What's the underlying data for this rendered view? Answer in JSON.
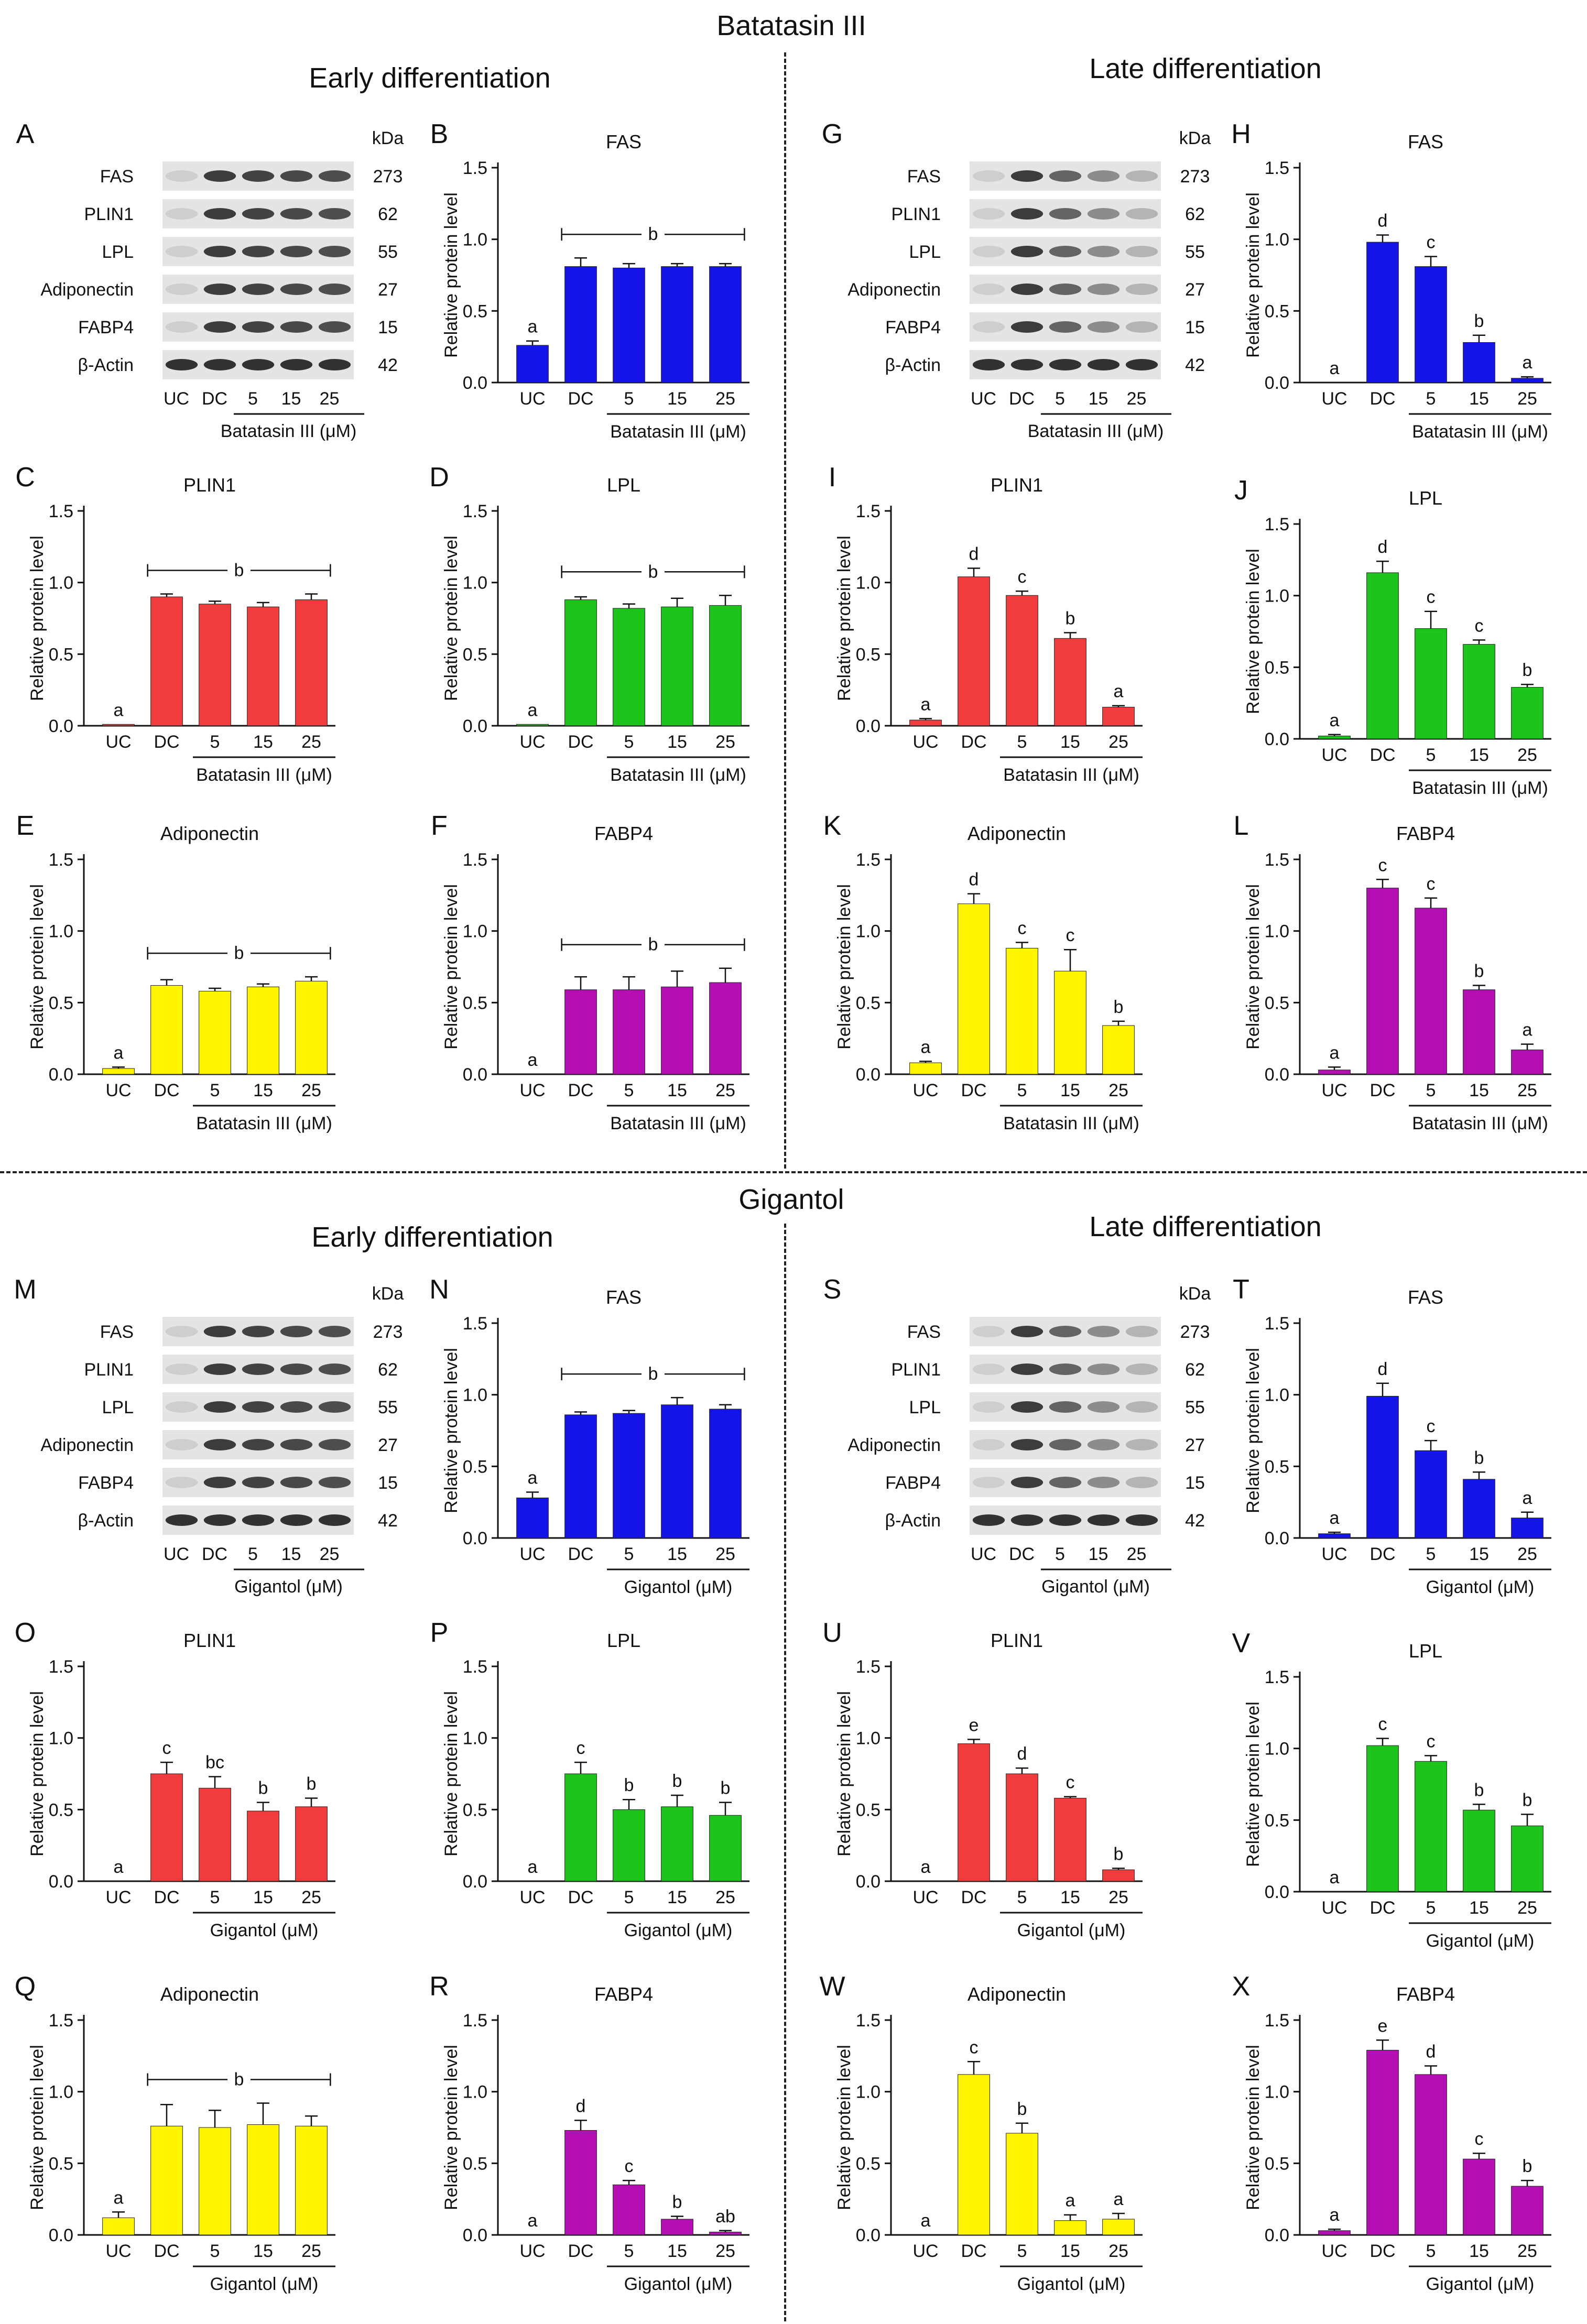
{
  "titles": {
    "top": "Batatasin III",
    "bottom": "Gigantol",
    "early": "Early differentiation",
    "late": "Late differentiation"
  },
  "common": {
    "ylabel": "Relative protein level",
    "kda": "kDa",
    "groups": [
      "UC",
      "DC",
      "5",
      "15",
      "25"
    ]
  },
  "colors": {
    "FAS": "#1414e6",
    "PLIN1": "#f03c3c",
    "LPL": "#1cc41c",
    "Adiponectin": "#fff500",
    "FABP4": "#b30fb3"
  },
  "blots": [
    {
      "panel": "A",
      "treatment": "Batatasin III (μM)",
      "proteins": [
        "FAS",
        "PLIN1",
        "LPL",
        "Adiponectin",
        "FABP4",
        "β-Actin"
      ],
      "kda_values": [
        "273",
        "62",
        "55",
        "27",
        "15",
        "42"
      ]
    },
    {
      "panel": "G",
      "treatment": "Batatasin III (μM)",
      "proteins": [
        "FAS",
        "PLIN1",
        "LPL",
        "Adiponectin",
        "FABP4",
        "β-Actin"
      ],
      "kda_values": [
        "273",
        "62",
        "55",
        "27",
        "15",
        "42"
      ]
    },
    {
      "panel": "M",
      "treatment": "Gigantol (μM)",
      "proteins": [
        "FAS",
        "PLIN1",
        "LPL",
        "Adiponectin",
        "FABP4",
        "β-Actin"
      ],
      "kda_values": [
        "273",
        "62",
        "55",
        "27",
        "15",
        "42"
      ]
    },
    {
      "panel": "S",
      "treatment": "Gigantol (μM)",
      "proteins": [
        "FAS",
        "PLIN1",
        "LPL",
        "Adiponectin",
        "FABP4",
        "β-Actin"
      ],
      "kda_values": [
        "273",
        "62",
        "55",
        "27",
        "15",
        "42"
      ]
    }
  ],
  "chart_data": [
    {
      "panel": "B",
      "type": "bar",
      "title": "FAS",
      "color_key": "FAS",
      "xlabel": "Batatasin III (μM)",
      "ylabel": "Relative protein level",
      "ylim": [
        0,
        1.5
      ],
      "yticks": [
        "0.0",
        "0.5",
        "1.0",
        "1.5"
      ],
      "categories": [
        "UC",
        "DC",
        "5",
        "15",
        "25"
      ],
      "values": [
        0.26,
        0.81,
        0.8,
        0.81,
        0.81
      ],
      "errors": [
        0.03,
        0.06,
        0.03,
        0.02,
        0.02
      ],
      "letters": [
        "a",
        "",
        "",
        "",
        ""
      ],
      "bracket": "b"
    },
    {
      "panel": "C",
      "type": "bar",
      "title": "PLIN1",
      "color_key": "PLIN1",
      "xlabel": "Batatasin III (μM)",
      "ylabel": "Relative protein level",
      "ylim": [
        0,
        1.5
      ],
      "yticks": [
        "0.0",
        "0.5",
        "1.0",
        "1.5"
      ],
      "categories": [
        "UC",
        "DC",
        "5",
        "15",
        "25"
      ],
      "values": [
        0.01,
        0.9,
        0.85,
        0.83,
        0.88
      ],
      "errors": [
        0.0,
        0.02,
        0.02,
        0.03,
        0.04
      ],
      "letters": [
        "a",
        "",
        "",
        "",
        ""
      ],
      "bracket": "b"
    },
    {
      "panel": "D",
      "type": "bar",
      "title": "LPL",
      "color_key": "LPL",
      "xlabel": "Batatasin III (μM)",
      "ylabel": "Relative protein level",
      "ylim": [
        0,
        1.5
      ],
      "yticks": [
        "0.0",
        "0.5",
        "1.0",
        "1.5"
      ],
      "categories": [
        "UC",
        "DC",
        "5",
        "15",
        "25"
      ],
      "values": [
        0.01,
        0.88,
        0.82,
        0.83,
        0.84
      ],
      "errors": [
        0.0,
        0.02,
        0.03,
        0.06,
        0.07
      ],
      "letters": [
        "a",
        "",
        "",
        "",
        ""
      ],
      "bracket": "b"
    },
    {
      "panel": "E",
      "type": "bar",
      "title": "Adiponectin",
      "color_key": "Adiponectin",
      "xlabel": "Batatasin III (μM)",
      "ylabel": "Relative protein level",
      "ylim": [
        0,
        1.5
      ],
      "yticks": [
        "0.0",
        "0.5",
        "1.0",
        "1.5"
      ],
      "categories": [
        "UC",
        "DC",
        "5",
        "15",
        "25"
      ],
      "values": [
        0.04,
        0.62,
        0.58,
        0.61,
        0.65
      ],
      "errors": [
        0.01,
        0.04,
        0.02,
        0.02,
        0.03
      ],
      "letters": [
        "a",
        "",
        "",
        "",
        ""
      ],
      "bracket": "b"
    },
    {
      "panel": "F",
      "type": "bar",
      "title": "FABP4",
      "color_key": "FABP4",
      "xlabel": "Batatasin III (μM)",
      "ylabel": "Relative protein level",
      "ylim": [
        0,
        1.5
      ],
      "yticks": [
        "0.0",
        "0.5",
        "1.0",
        "1.5"
      ],
      "categories": [
        "UC",
        "DC",
        "5",
        "15",
        "25"
      ],
      "values": [
        0.0,
        0.59,
        0.59,
        0.61,
        0.64
      ],
      "errors": [
        0.0,
        0.09,
        0.09,
        0.11,
        0.1
      ],
      "letters": [
        "a",
        "",
        "",
        "",
        ""
      ],
      "bracket": "b"
    },
    {
      "panel": "H",
      "type": "bar",
      "title": "FAS",
      "color_key": "FAS",
      "xlabel": "Batatasin III (μM)",
      "ylabel": "Relative protein level",
      "ylim": [
        0,
        1.5
      ],
      "yticks": [
        "0.0",
        "0.5",
        "1.0",
        "1.5"
      ],
      "categories": [
        "UC",
        "DC",
        "5",
        "15",
        "25"
      ],
      "values": [
        0.0,
        0.98,
        0.81,
        0.28,
        0.03
      ],
      "errors": [
        0.0,
        0.05,
        0.07,
        0.05,
        0.01
      ],
      "letters": [
        "a",
        "d",
        "c",
        "b",
        "a"
      ]
    },
    {
      "panel": "I",
      "type": "bar",
      "title": "PLIN1",
      "color_key": "PLIN1",
      "xlabel": "Batatasin III (μM)",
      "ylabel": "Relative protein level",
      "ylim": [
        0,
        1.5
      ],
      "yticks": [
        "0.0",
        "0.5",
        "1.0",
        "1.5"
      ],
      "categories": [
        "UC",
        "DC",
        "5",
        "15",
        "25"
      ],
      "values": [
        0.04,
        1.04,
        0.91,
        0.61,
        0.13
      ],
      "errors": [
        0.01,
        0.06,
        0.03,
        0.04,
        0.01
      ],
      "letters": [
        "a",
        "d",
        "c",
        "b",
        "a"
      ]
    },
    {
      "panel": "J",
      "type": "bar",
      "title": "LPL",
      "color_key": "LPL",
      "xlabel": "Batatasin III (μM)",
      "ylabel": "Relative protein level",
      "ylim": [
        0,
        1.5
      ],
      "yticks": [
        "0.0",
        "0.5",
        "1.0",
        "1.5"
      ],
      "categories": [
        "UC",
        "DC",
        "5",
        "15",
        "25"
      ],
      "values": [
        0.02,
        1.16,
        0.77,
        0.66,
        0.36
      ],
      "errors": [
        0.01,
        0.08,
        0.12,
        0.03,
        0.02
      ],
      "letters": [
        "a",
        "d",
        "c",
        "c",
        "b"
      ]
    },
    {
      "panel": "K",
      "type": "bar",
      "title": "Adiponectin",
      "color_key": "Adiponectin",
      "xlabel": "Batatasin III (μM)",
      "ylabel": "Relative protein level",
      "ylim": [
        0,
        1.5
      ],
      "yticks": [
        "0.0",
        "0.5",
        "1.0",
        "1.5"
      ],
      "categories": [
        "UC",
        "DC",
        "5",
        "15",
        "25"
      ],
      "values": [
        0.08,
        1.19,
        0.88,
        0.72,
        0.34
      ],
      "errors": [
        0.01,
        0.07,
        0.04,
        0.15,
        0.03
      ],
      "letters": [
        "a",
        "d",
        "c",
        "c",
        "b"
      ]
    },
    {
      "panel": "L",
      "type": "bar",
      "title": "FABP4",
      "color_key": "FABP4",
      "xlabel": "Batatasin III (μM)",
      "ylabel": "Relative protein level",
      "ylim": [
        0,
        1.5
      ],
      "yticks": [
        "0.0",
        "0.5",
        "1.0",
        "1.5"
      ],
      "categories": [
        "UC",
        "DC",
        "5",
        "15",
        "25"
      ],
      "values": [
        0.03,
        1.3,
        1.16,
        0.59,
        0.17
      ],
      "errors": [
        0.02,
        0.06,
        0.07,
        0.03,
        0.04
      ],
      "letters": [
        "a",
        "c",
        "c",
        "b",
        "a"
      ]
    },
    {
      "panel": "N",
      "type": "bar",
      "title": "FAS",
      "color_key": "FAS",
      "xlabel": "Gigantol (μM)",
      "ylabel": "Relative protein level",
      "ylim": [
        0,
        1.5
      ],
      "yticks": [
        "0.0",
        "0.5",
        "1.0",
        "1.5"
      ],
      "categories": [
        "UC",
        "DC",
        "5",
        "15",
        "25"
      ],
      "values": [
        0.28,
        0.86,
        0.87,
        0.93,
        0.9
      ],
      "errors": [
        0.04,
        0.02,
        0.02,
        0.05,
        0.03
      ],
      "letters": [
        "a",
        "",
        "",
        "",
        ""
      ],
      "bracket": "b"
    },
    {
      "panel": "O",
      "type": "bar",
      "title": "PLIN1",
      "color_key": "PLIN1",
      "xlabel": "Gigantol (μM)",
      "ylabel": "Relative protein level",
      "ylim": [
        0,
        1.5
      ],
      "yticks": [
        "0.0",
        "0.5",
        "1.0",
        "1.5"
      ],
      "categories": [
        "UC",
        "DC",
        "5",
        "15",
        "25"
      ],
      "values": [
        0.0,
        0.75,
        0.65,
        0.49,
        0.52
      ],
      "errors": [
        0.0,
        0.08,
        0.08,
        0.06,
        0.06
      ],
      "letters": [
        "a",
        "c",
        "bc",
        "b",
        "b"
      ]
    },
    {
      "panel": "P",
      "type": "bar",
      "title": "LPL",
      "color_key": "LPL",
      "xlabel": "Gigantol (μM)",
      "ylabel": "Relative protein level",
      "ylim": [
        0,
        1.5
      ],
      "yticks": [
        "0.0",
        "0.5",
        "1.0",
        "1.5"
      ],
      "categories": [
        "UC",
        "DC",
        "5",
        "15",
        "25"
      ],
      "values": [
        0.0,
        0.75,
        0.5,
        0.52,
        0.46
      ],
      "errors": [
        0.0,
        0.08,
        0.07,
        0.08,
        0.09
      ],
      "letters": [
        "a",
        "c",
        "b",
        "b",
        "b"
      ]
    },
    {
      "panel": "Q",
      "type": "bar",
      "title": "Adiponectin",
      "color_key": "Adiponectin",
      "xlabel": "Gigantol (μM)",
      "ylabel": "Relative protein level",
      "ylim": [
        0,
        1.5
      ],
      "yticks": [
        "0.0",
        "0.5",
        "1.0",
        "1.5"
      ],
      "categories": [
        "UC",
        "DC",
        "5",
        "15",
        "25"
      ],
      "values": [
        0.12,
        0.76,
        0.75,
        0.77,
        0.76
      ],
      "errors": [
        0.04,
        0.15,
        0.12,
        0.15,
        0.07
      ],
      "letters": [
        "a",
        "",
        "",
        "",
        ""
      ],
      "bracket": "b"
    },
    {
      "panel": "R",
      "type": "bar",
      "title": "FABP4",
      "color_key": "FABP4",
      "xlabel": "Gigantol (μM)",
      "ylabel": "Relative protein level",
      "ylim": [
        0,
        1.5
      ],
      "yticks": [
        "0.0",
        "0.5",
        "1.0",
        "1.5"
      ],
      "categories": [
        "UC",
        "DC",
        "5",
        "15",
        "25"
      ],
      "values": [
        0.0,
        0.73,
        0.35,
        0.11,
        0.02
      ],
      "errors": [
        0.0,
        0.07,
        0.03,
        0.02,
        0.01
      ],
      "letters": [
        "a",
        "d",
        "c",
        "b",
        "ab"
      ]
    },
    {
      "panel": "T",
      "type": "bar",
      "title": "FAS",
      "color_key": "FAS",
      "xlabel": "Gigantol (μM)",
      "ylabel": "Relative protein level",
      "ylim": [
        0,
        1.5
      ],
      "yticks": [
        "0.0",
        "0.5",
        "1.0",
        "1.5"
      ],
      "categories": [
        "UC",
        "DC",
        "5",
        "15",
        "25"
      ],
      "values": [
        0.03,
        0.99,
        0.61,
        0.41,
        0.14
      ],
      "errors": [
        0.01,
        0.09,
        0.07,
        0.05,
        0.04
      ],
      "letters": [
        "a",
        "d",
        "c",
        "b",
        "a"
      ]
    },
    {
      "panel": "U",
      "type": "bar",
      "title": "PLIN1",
      "color_key": "PLIN1",
      "xlabel": "Gigantol (μM)",
      "ylabel": "Relative protein level",
      "ylim": [
        0,
        1.5
      ],
      "yticks": [
        "0.0",
        "0.5",
        "1.0",
        "1.5"
      ],
      "categories": [
        "UC",
        "DC",
        "5",
        "15",
        "25"
      ],
      "values": [
        0.0,
        0.96,
        0.75,
        0.58,
        0.08
      ],
      "errors": [
        0.0,
        0.03,
        0.04,
        0.01,
        0.01
      ],
      "letters": [
        "a",
        "e",
        "d",
        "c",
        "b"
      ]
    },
    {
      "panel": "V",
      "type": "bar",
      "title": "LPL",
      "color_key": "LPL",
      "xlabel": "Gigantol (μM)",
      "ylabel": "Relative protein level",
      "ylim": [
        0,
        1.5
      ],
      "yticks": [
        "0.0",
        "0.5",
        "1.0",
        "1.5"
      ],
      "categories": [
        "UC",
        "DC",
        "5",
        "15",
        "25"
      ],
      "values": [
        0.0,
        1.02,
        0.91,
        0.57,
        0.46
      ],
      "errors": [
        0.0,
        0.05,
        0.04,
        0.04,
        0.08
      ],
      "letters": [
        "a",
        "c",
        "c",
        "b",
        "b"
      ]
    },
    {
      "panel": "W",
      "type": "bar",
      "title": "Adiponectin",
      "color_key": "Adiponectin",
      "xlabel": "Gigantol (μM)",
      "ylabel": "Relative protein level",
      "ylim": [
        0,
        1.5
      ],
      "yticks": [
        "0.0",
        "0.5",
        "1.0",
        "1.5"
      ],
      "categories": [
        "UC",
        "DC",
        "5",
        "15",
        "25"
      ],
      "values": [
        0.0,
        1.12,
        0.71,
        0.1,
        0.11
      ],
      "errors": [
        0.0,
        0.09,
        0.07,
        0.04,
        0.04
      ],
      "letters": [
        "a",
        "c",
        "b",
        "a",
        "a"
      ]
    },
    {
      "panel": "X",
      "type": "bar",
      "title": "FABP4",
      "color_key": "FABP4",
      "xlabel": "Gigantol (μM)",
      "ylabel": "Relative protein level",
      "ylim": [
        0,
        1.5
      ],
      "yticks": [
        "0.0",
        "0.5",
        "1.0",
        "1.5"
      ],
      "categories": [
        "UC",
        "DC",
        "5",
        "15",
        "25"
      ],
      "values": [
        0.03,
        1.29,
        1.12,
        0.53,
        0.34
      ],
      "errors": [
        0.01,
        0.07,
        0.06,
        0.04,
        0.04
      ],
      "letters": [
        "a",
        "e",
        "d",
        "c",
        "b"
      ]
    }
  ]
}
